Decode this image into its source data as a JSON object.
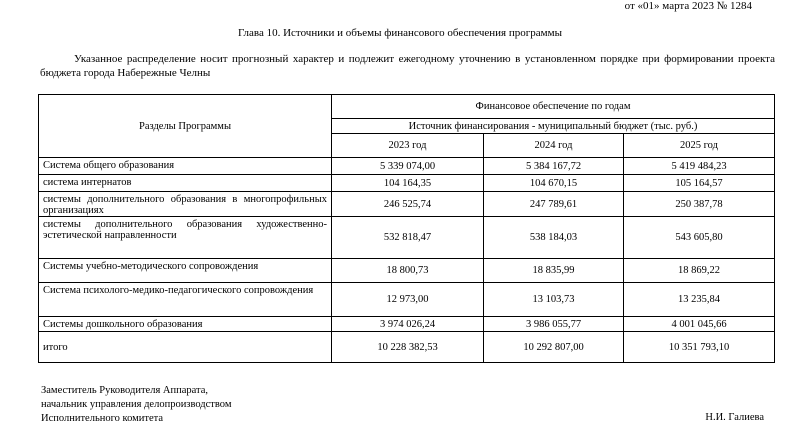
{
  "header": {
    "order_ref": "от «01» марта 2023 № 1284",
    "title": "Глава 10. Источники и объемы финансового обеспечения программы",
    "intro": "Указанное распределение носит прогнозный характер и подлежит ежегодному уточнению в установленном порядке при формировании проекта бюджета города Набережные Челны"
  },
  "table": {
    "col_section": "Разделы Программы",
    "group_header": "Финансовое обеспечение по годам",
    "source_header": "Источник финансирования - муниципальный бюджет (тыс. руб.)",
    "years": [
      "2023 год",
      "2024 год",
      "2025 год"
    ],
    "rows": [
      {
        "label": "Система общего образования",
        "values": [
          "5 339 074,00",
          "5 384 167,72",
          "5 419 484,23"
        ]
      },
      {
        "label": "система интернатов",
        "values": [
          "104 164,35",
          "104 670,15",
          "105 164,57"
        ]
      },
      {
        "label": "системы дополнительного образования в многопрофильных организациях",
        "values": [
          "246 525,74",
          "247 789,61",
          "250 387,78"
        ]
      },
      {
        "label": "системы дополнительного образования художественно-эстетической направленности",
        "values": [
          "532 818,47",
          "538 184,03",
          "543 605,80"
        ]
      },
      {
        "label": "Системы учебно-методического сопровождения",
        "values": [
          "18 800,73",
          "18 835,99",
          "18 869,22"
        ]
      },
      {
        "label": "Система психолого-медико-педагогического сопровождения",
        "values": [
          "12 973,00",
          "13 103,73",
          "13 235,84"
        ]
      },
      {
        "label": "Системы дошкольного образования",
        "values": [
          "3 974 026,24",
          "3 986 055,77",
          "4 001 045,66"
        ]
      },
      {
        "label": "итого",
        "values": [
          "10 228 382,53",
          "10 292 807,00",
          "10 351 793,10"
        ]
      }
    ]
  },
  "footer": {
    "line1": "Заместитель Руководителя Аппарата,",
    "line2": "начальник управления делопроизводством",
    "line3": "Исполнительного комитета",
    "signature": "Н.И. Галиева"
  }
}
